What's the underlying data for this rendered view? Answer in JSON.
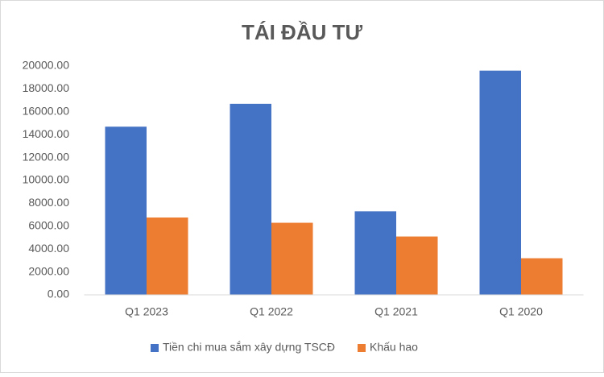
{
  "chart_data": {
    "type": "bar",
    "title": "TÁI ĐẦU TƯ",
    "categories": [
      "Q1 2023",
      "Q1 2022",
      "Q1 2021",
      "Q1 2020"
    ],
    "series": [
      {
        "name": "Tiền chi mua sắm xây dựng TSCĐ",
        "color": "#4472c4",
        "values": [
          14700,
          16700,
          7300,
          19600
        ]
      },
      {
        "name": "Khấu hao",
        "color": "#ed7d31",
        "values": [
          6760,
          6300,
          5100,
          3200
        ]
      }
    ],
    "ylim": [
      0,
      20000
    ],
    "yticks": [
      {
        "value": 0,
        "label": "0.00"
      },
      {
        "value": 2000,
        "label": "2000.00"
      },
      {
        "value": 4000,
        "label": "4000.00"
      },
      {
        "value": 6000,
        "label": "6000.00"
      },
      {
        "value": 8000,
        "label": "8000.00"
      },
      {
        "value": 10000,
        "label": "10000.00"
      },
      {
        "value": 12000,
        "label": "12000.00"
      },
      {
        "value": 14000,
        "label": "14000.00"
      },
      {
        "value": 16000,
        "label": "16000.00"
      },
      {
        "value": 18000,
        "label": "18000.00"
      },
      {
        "value": 20000,
        "label": "20000.00"
      }
    ],
    "grid": false,
    "legend": "bottom"
  }
}
